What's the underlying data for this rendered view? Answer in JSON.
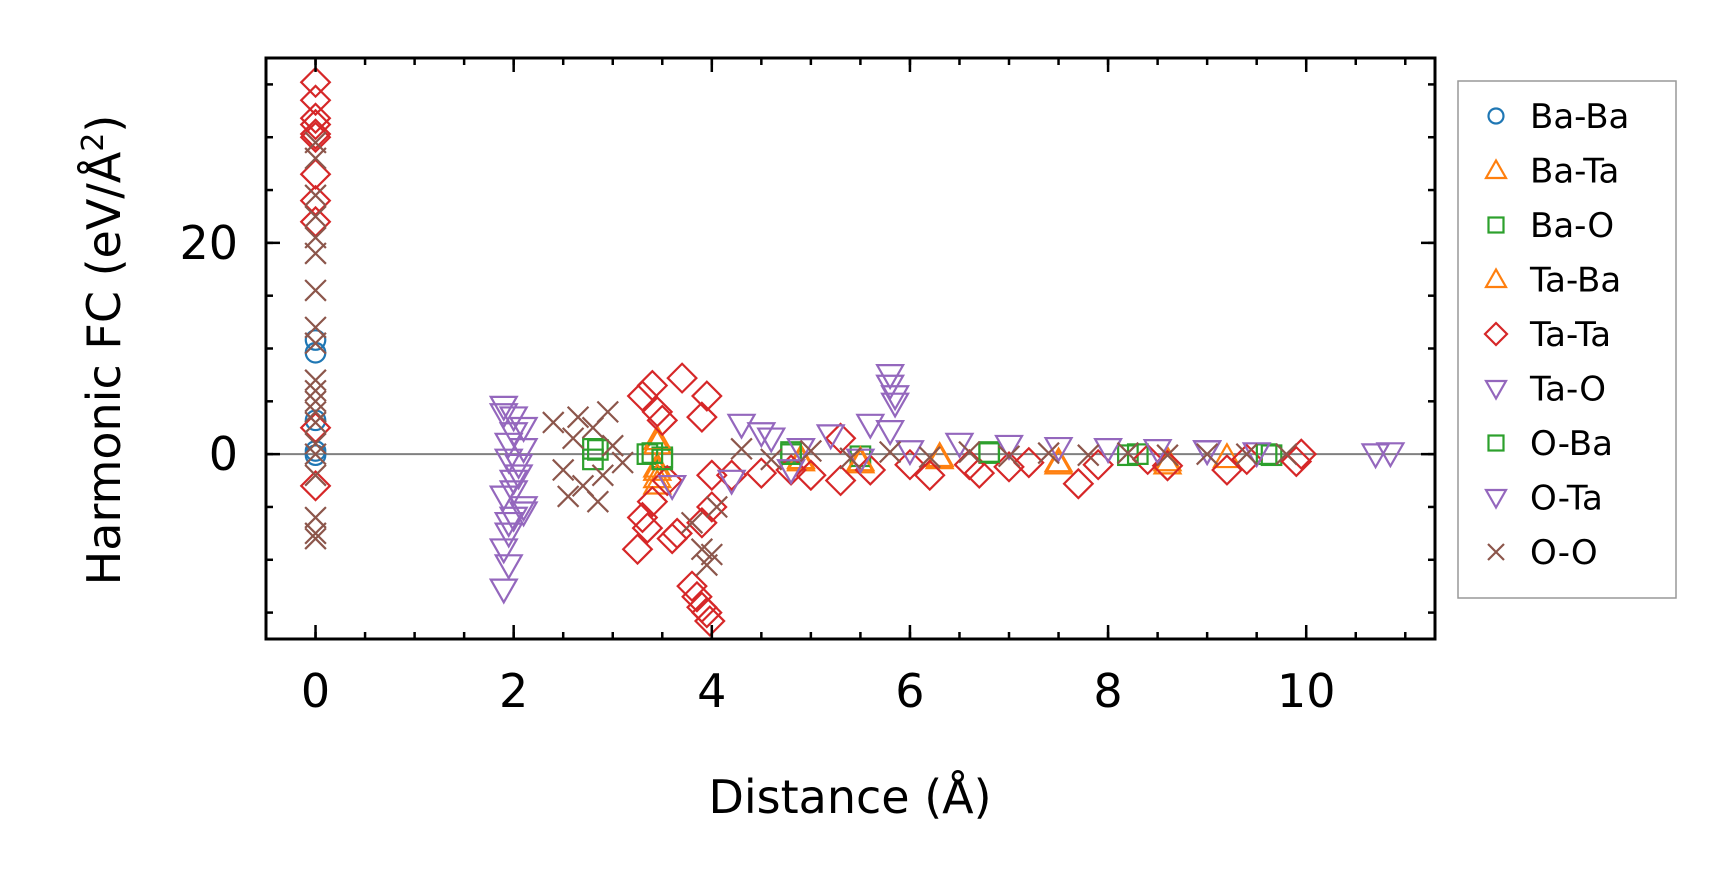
{
  "chart_data": {
    "type": "scatter",
    "title": "",
    "xlabel": "Distance (Å)",
    "ylabel": "Harmonic FC (eV/Å²)",
    "ylabel_base": "Harmonic FC (eV/Å",
    "ylabel_sup": "2",
    "ylabel_tail": ")",
    "xlim": [
      -0.5,
      11.3
    ],
    "ylim": [
      -17.5,
      37.5
    ],
    "xticks": [
      0,
      2,
      4,
      6,
      8,
      10
    ],
    "xtick_labels": [
      "0",
      "2",
      "4",
      "6",
      "8",
      "10"
    ],
    "yticks": [
      0,
      20
    ],
    "ytick_labels": [
      "0",
      "20"
    ],
    "x_minor_step": 0.5,
    "y_minor_step": 5,
    "zero_line": true,
    "legend_position": "outside-right",
    "series": [
      {
        "name": "Ba-Ba",
        "marker": "circle",
        "color": "#1f77b4",
        "points": [
          [
            0,
            9.6
          ],
          [
            0,
            10.8
          ],
          [
            0,
            3.2
          ],
          [
            0,
            0.3
          ],
          [
            0,
            -0.1
          ]
        ]
      },
      {
        "name": "Ba-Ta",
        "marker": "triangle-up",
        "color": "#ff7f0e",
        "points": [
          [
            3.45,
            -1.2
          ],
          [
            3.45,
            -2.8
          ],
          [
            3.45,
            1.0
          ],
          [
            4.9,
            -0.6
          ],
          [
            5.5,
            -0.8
          ],
          [
            6.3,
            -0.4
          ],
          [
            7.5,
            -0.9
          ],
          [
            8.6,
            -0.9
          ],
          [
            9.2,
            -0.3
          ]
        ]
      },
      {
        "name": "Ba-O",
        "marker": "square",
        "color": "#2ca02c",
        "points": [
          [
            2.8,
            0.5
          ],
          [
            2.8,
            -0.5
          ],
          [
            3.35,
            0.0
          ],
          [
            3.5,
            -0.3
          ],
          [
            4.8,
            0.2
          ],
          [
            5.5,
            -0.2
          ],
          [
            6.8,
            0.1
          ],
          [
            8.2,
            -0.1
          ],
          [
            9.65,
            -0.1
          ]
        ]
      },
      {
        "name": "Ta-Ba",
        "marker": "triangle-up",
        "color": "#ff7f0e",
        "points": [
          [
            3.45,
            -1.5
          ],
          [
            3.45,
            -2.2
          ],
          [
            3.45,
            1.4
          ],
          [
            4.9,
            -0.4
          ],
          [
            5.5,
            -0.6
          ],
          [
            6.3,
            -0.2
          ],
          [
            7.5,
            -0.7
          ],
          [
            8.6,
            -0.6
          ]
        ]
      },
      {
        "name": "Ta-Ta",
        "marker": "diamond",
        "color": "#d62728",
        "points": [
          [
            0,
            35.2
          ],
          [
            0,
            33.5
          ],
          [
            0,
            31.8
          ],
          [
            0,
            31.2
          ],
          [
            0,
            30.3
          ],
          [
            0,
            30.0
          ],
          [
            0,
            26.5
          ],
          [
            0,
            24.0
          ],
          [
            0,
            22.0
          ],
          [
            0,
            2.5
          ],
          [
            0,
            -3.0
          ],
          [
            3.3,
            5.5
          ],
          [
            3.4,
            6.5
          ],
          [
            3.45,
            4.0
          ],
          [
            3.5,
            3.2
          ],
          [
            3.3,
            -6.0
          ],
          [
            3.35,
            -7.0
          ],
          [
            3.4,
            -4.5
          ],
          [
            3.25,
            -9.0
          ],
          [
            3.6,
            -8.0
          ],
          [
            3.65,
            -7.5
          ],
          [
            3.7,
            7.2
          ],
          [
            3.95,
            5.5
          ],
          [
            3.8,
            -12.5
          ],
          [
            3.85,
            -13.5
          ],
          [
            3.9,
            -14.5
          ],
          [
            3.95,
            -15.0
          ],
          [
            3.98,
            -15.8
          ],
          [
            3.9,
            -6.5
          ],
          [
            4.0,
            -5.0
          ],
          [
            3.9,
            3.5
          ],
          [
            4.0,
            -2.0
          ],
          [
            3.55,
            -2.5
          ],
          [
            4.2,
            -2.0
          ],
          [
            4.5,
            -1.8
          ],
          [
            4.8,
            -1.5
          ],
          [
            5.0,
            -2.0
          ],
          [
            5.3,
            -2.5
          ],
          [
            5.3,
            1.5
          ],
          [
            5.6,
            -1.5
          ],
          [
            6.0,
            -1.0
          ],
          [
            6.2,
            -2.0
          ],
          [
            6.6,
            -1.0
          ],
          [
            6.7,
            -1.8
          ],
          [
            7.0,
            -1.2
          ],
          [
            7.2,
            -0.8
          ],
          [
            7.7,
            -2.8
          ],
          [
            7.9,
            -1.0
          ],
          [
            8.4,
            -0.5
          ],
          [
            8.6,
            -1.1
          ],
          [
            9.2,
            -1.5
          ],
          [
            9.4,
            -0.5
          ],
          [
            9.9,
            -0.7
          ],
          [
            9.95,
            0.0
          ]
        ]
      },
      {
        "name": "Ta-O",
        "marker": "triangle-down",
        "color": "#9467bd",
        "points": [
          [
            1.9,
            4.5
          ],
          [
            2.0,
            3.5
          ],
          [
            2.1,
            2.5
          ],
          [
            1.95,
            1.0
          ],
          [
            2.05,
            -1.0
          ],
          [
            2.0,
            -2.5
          ],
          [
            1.9,
            -4.0
          ],
          [
            2.1,
            -5.0
          ],
          [
            2.0,
            -6.0
          ],
          [
            1.95,
            -7.5
          ],
          [
            1.9,
            -9.0
          ],
          [
            1.95,
            -10.5
          ],
          [
            1.9,
            -12.8
          ],
          [
            5.8,
            7.5
          ],
          [
            5.8,
            6.5
          ],
          [
            5.85,
            5.5
          ],
          [
            5.85,
            4.8
          ],
          [
            4.2,
            -2.5
          ],
          [
            3.6,
            -3.0
          ],
          [
            10.7,
            0.0
          ],
          [
            10.85,
            0.1
          ],
          [
            9.0,
            0.3
          ]
        ]
      },
      {
        "name": "O-Ba",
        "marker": "square",
        "color": "#2ca02c",
        "points": [
          [
            2.85,
            0.4
          ],
          [
            3.4,
            0.1
          ],
          [
            3.5,
            -0.5
          ],
          [
            4.8,
            0.0
          ],
          [
            6.8,
            0.2
          ],
          [
            8.3,
            0.0
          ],
          [
            9.6,
            0.0
          ]
        ]
      },
      {
        "name": "O-Ta",
        "marker": "triangle-down",
        "color": "#9467bd",
        "points": [
          [
            1.9,
            3.8
          ],
          [
            2.0,
            2.0
          ],
          [
            2.1,
            0.5
          ],
          [
            1.95,
            -0.5
          ],
          [
            2.05,
            -2.0
          ],
          [
            2.0,
            -3.5
          ],
          [
            2.1,
            -5.5
          ],
          [
            1.95,
            -6.5
          ],
          [
            4.3,
            2.8
          ],
          [
            4.5,
            2.0
          ],
          [
            4.6,
            1.5
          ],
          [
            4.8,
            -1.5
          ],
          [
            5.2,
            1.8
          ],
          [
            5.6,
            2.8
          ],
          [
            5.8,
            2.2
          ],
          [
            6.5,
            1.0
          ],
          [
            7.0,
            0.8
          ],
          [
            7.5,
            0.6
          ],
          [
            8.0,
            0.5
          ],
          [
            8.5,
            0.4
          ],
          [
            9.0,
            0.3
          ],
          [
            9.5,
            0.1
          ],
          [
            4.9,
            0.5
          ],
          [
            5.5,
            -0.5
          ],
          [
            6.0,
            0.3
          ]
        ]
      },
      {
        "name": "O-O",
        "marker": "x",
        "color": "#8c564b",
        "points": [
          [
            0,
            29.5
          ],
          [
            0,
            28.0
          ],
          [
            0,
            24.5
          ],
          [
            0,
            22.5
          ],
          [
            0,
            20.5
          ],
          [
            0,
            19.0
          ],
          [
            0,
            15.5
          ],
          [
            0,
            12.0
          ],
          [
            0,
            10.5
          ],
          [
            0,
            7.0
          ],
          [
            0,
            6.0
          ],
          [
            0,
            5.0
          ],
          [
            0,
            4.0
          ],
          [
            0,
            3.0
          ],
          [
            0,
            1.0
          ],
          [
            0,
            0.0
          ],
          [
            0,
            -2.0
          ],
          [
            0,
            -6.0
          ],
          [
            0,
            -7.5
          ],
          [
            0,
            -8.0
          ],
          [
            2.4,
            3.0
          ],
          [
            2.5,
            -1.5
          ],
          [
            2.6,
            1.5
          ],
          [
            2.7,
            -3.0
          ],
          [
            2.8,
            2.5
          ],
          [
            2.9,
            -2.0
          ],
          [
            3.0,
            0.8
          ],
          [
            3.1,
            -0.8
          ],
          [
            2.55,
            -4.0
          ],
          [
            2.95,
            4.0
          ],
          [
            2.65,
            3.5
          ],
          [
            2.85,
            -4.5
          ],
          [
            3.8,
            -6.5
          ],
          [
            3.9,
            -9.0
          ],
          [
            3.95,
            -10.5
          ],
          [
            4.05,
            -5.0
          ],
          [
            4.0,
            -9.5
          ],
          [
            4.3,
            0.5
          ],
          [
            4.6,
            -0.5
          ],
          [
            5.0,
            0.3
          ],
          [
            5.4,
            -0.4
          ],
          [
            5.8,
            0.2
          ],
          [
            6.2,
            -0.3
          ],
          [
            6.6,
            0.2
          ],
          [
            7.0,
            -0.2
          ],
          [
            7.4,
            0.1
          ],
          [
            7.8,
            -0.1
          ],
          [
            8.2,
            0.1
          ],
          [
            8.6,
            -0.1
          ],
          [
            9.0,
            0.0
          ],
          [
            9.4,
            0.0
          ],
          [
            9.8,
            0.0
          ]
        ]
      }
    ]
  }
}
